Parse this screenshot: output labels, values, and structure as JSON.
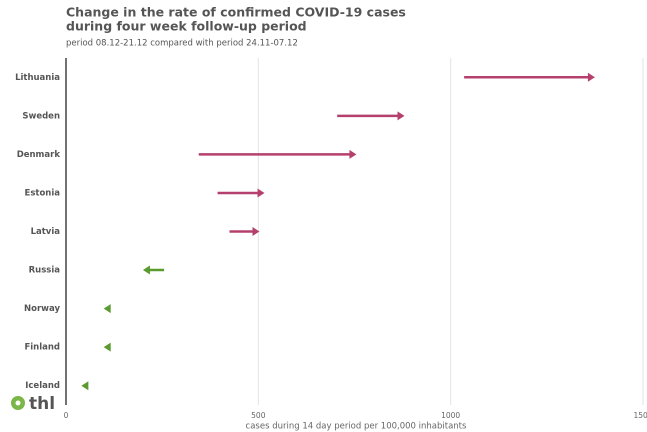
{
  "chart_data": {
    "type": "arrow",
    "title": [
      "Change in the rate of confirmed COVID-19 cases",
      "during four week follow-up period"
    ],
    "subtitle": "period 08.12-21.12 compared with period 24.11-07.12",
    "x_label": "cases during 14 day period per 100,000 inhabitants",
    "categories": [
      "Lithuania",
      "Sweden",
      "Denmark",
      "Estonia",
      "Latvia",
      "Russia",
      "Norway",
      "Finland",
      "Iceland"
    ],
    "start_values": [
      1035,
      705,
      345,
      394,
      425,
      255,
      112,
      112,
      57
    ],
    "end_values": [
      1375,
      880,
      755,
      516,
      503,
      200,
      98,
      98,
      40
    ],
    "increase_color": "#b5406e",
    "decrease_color": "#5a9a2e",
    "xlim": [
      0,
      1500
    ],
    "xticks": [
      0,
      500,
      1000,
      1500
    ],
    "grid": true,
    "logo": "thl"
  }
}
